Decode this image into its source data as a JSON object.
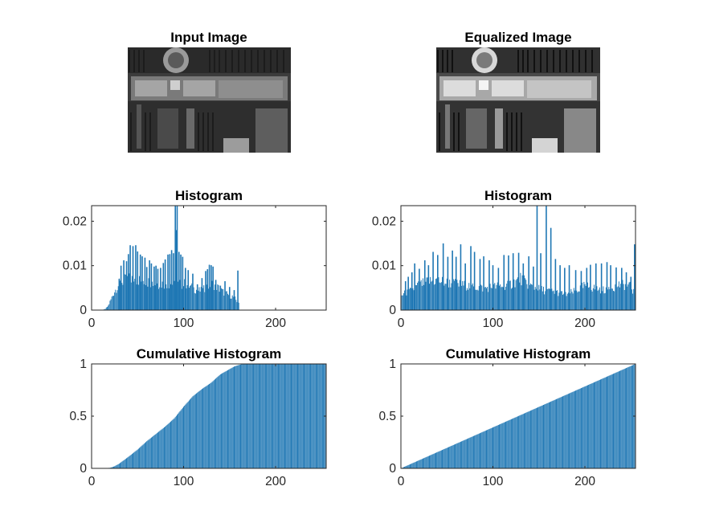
{
  "figure": {
    "image_titles": [
      "Input Image",
      "Equalized Image"
    ]
  },
  "chart_data": [
    {
      "type": "bar",
      "title": "Histogram",
      "xlim": [
        0,
        255
      ],
      "ylim": [
        0,
        0.0235
      ],
      "xticks": [
        0,
        100,
        200
      ],
      "yticks": [
        0,
        0.01,
        0.02
      ],
      "ytick_labels": [
        "0",
        "0.01",
        "0.02"
      ],
      "bar_color": "#1f77b4",
      "envelope": [
        [
          12,
          0
        ],
        [
          15,
          0.0003
        ],
        [
          18,
          0.001
        ],
        [
          20,
          0.002
        ],
        [
          22,
          0.003
        ],
        [
          25,
          0.0045
        ],
        [
          28,
          0.0055
        ],
        [
          30,
          0.0062
        ],
        [
          35,
          0.007
        ],
        [
          40,
          0.0073
        ],
        [
          45,
          0.0075
        ],
        [
          50,
          0.0072
        ],
        [
          55,
          0.007
        ],
        [
          60,
          0.0068
        ],
        [
          65,
          0.0065
        ],
        [
          70,
          0.0063
        ],
        [
          75,
          0.0062
        ],
        [
          80,
          0.0063
        ],
        [
          85,
          0.0062
        ],
        [
          90,
          0.0061
        ],
        [
          95,
          0.006
        ],
        [
          100,
          0.0063
        ],
        [
          105,
          0.0058
        ],
        [
          110,
          0.0052
        ],
        [
          115,
          0.0047
        ],
        [
          120,
          0.0045
        ],
        [
          125,
          0.0055
        ],
        [
          130,
          0.0062
        ],
        [
          135,
          0.0058
        ],
        [
          140,
          0.0048
        ],
        [
          145,
          0.004
        ],
        [
          150,
          0.0035
        ],
        [
          155,
          0.003
        ],
        [
          160,
          0.0015
        ],
        [
          161,
          0
        ]
      ],
      "spikes": [
        [
          30,
          0.007
        ],
        [
          32,
          0.01
        ],
        [
          35,
          0.0112
        ],
        [
          38,
          0.011
        ],
        [
          40,
          0.0126
        ],
        [
          42,
          0.0146
        ],
        [
          45,
          0.0144
        ],
        [
          48,
          0.0146
        ],
        [
          50,
          0.0132
        ],
        [
          53,
          0.0125
        ],
        [
          55,
          0.0121
        ],
        [
          58,
          0.0118
        ],
        [
          60,
          0.0097
        ],
        [
          63,
          0.0112
        ],
        [
          65,
          0.0105
        ],
        [
          68,
          0.0098
        ],
        [
          70,
          0.01
        ],
        [
          72,
          0.0093
        ],
        [
          75,
          0.0095
        ],
        [
          78,
          0.0106
        ],
        [
          80,
          0.0114
        ],
        [
          83,
          0.0125
        ],
        [
          85,
          0.0126
        ],
        [
          87,
          0.0135
        ],
        [
          89,
          0.0128
        ],
        [
          91,
          0.0234
        ],
        [
          92,
          0.018
        ],
        [
          93,
          0.0234
        ],
        [
          95,
          0.0131
        ],
        [
          97,
          0.0125
        ],
        [
          99,
          0.012
        ],
        [
          102,
          0.0095
        ],
        [
          105,
          0.009
        ],
        [
          110,
          0.0082
        ],
        [
          115,
          0.0058
        ],
        [
          120,
          0.0072
        ],
        [
          124,
          0.0088
        ],
        [
          126,
          0.0092
        ],
        [
          128,
          0.0102
        ],
        [
          130,
          0.0101
        ],
        [
          132,
          0.0098
        ],
        [
          135,
          0.0068
        ],
        [
          140,
          0.0055
        ],
        [
          145,
          0.0065
        ],
        [
          150,
          0.0052
        ],
        [
          155,
          0.0045
        ],
        [
          159,
          0.0089
        ]
      ]
    },
    {
      "type": "bar",
      "title": "Histogram",
      "xlim": [
        0,
        255
      ],
      "ylim": [
        0,
        0.0235
      ],
      "xticks": [
        0,
        100,
        200
      ],
      "yticks": [
        0,
        0.01,
        0.02
      ],
      "ytick_labels": [
        "0",
        "0.01",
        "0.02"
      ],
      "bar_color": "#1f77b4",
      "envelope": [
        [
          0,
          0.0035
        ],
        [
          10,
          0.0045
        ],
        [
          20,
          0.006
        ],
        [
          30,
          0.0068
        ],
        [
          40,
          0.007
        ],
        [
          50,
          0.0065
        ],
        [
          60,
          0.0062
        ],
        [
          70,
          0.0058
        ],
        [
          80,
          0.0055
        ],
        [
          90,
          0.0052
        ],
        [
          100,
          0.0055
        ],
        [
          110,
          0.0058
        ],
        [
          120,
          0.0062
        ],
        [
          130,
          0.0075
        ],
        [
          140,
          0.0058
        ],
        [
          150,
          0.005
        ],
        [
          160,
          0.0045
        ],
        [
          170,
          0.0042
        ],
        [
          180,
          0.0038
        ],
        [
          190,
          0.0045
        ],
        [
          200,
          0.0058
        ],
        [
          210,
          0.0052
        ],
        [
          220,
          0.0048
        ],
        [
          230,
          0.0055
        ],
        [
          240,
          0.0062
        ],
        [
          250,
          0.0055
        ],
        [
          255,
          0.0035
        ]
      ],
      "spikes": [
        [
          5,
          0.0065
        ],
        [
          8,
          0.0075
        ],
        [
          12,
          0.0085
        ],
        [
          15,
          0.0105
        ],
        [
          20,
          0.0093
        ],
        [
          26,
          0.0112
        ],
        [
          30,
          0.0101
        ],
        [
          35,
          0.0131
        ],
        [
          40,
          0.0124
        ],
        [
          46,
          0.015
        ],
        [
          51,
          0.012
        ],
        [
          56,
          0.0134
        ],
        [
          60,
          0.012
        ],
        [
          65,
          0.0148
        ],
        [
          70,
          0.0105
        ],
        [
          76,
          0.0144
        ],
        [
          80,
          0.0131
        ],
        [
          86,
          0.0115
        ],
        [
          90,
          0.0121
        ],
        [
          96,
          0.0112
        ],
        [
          100,
          0.0101
        ],
        [
          106,
          0.0095
        ],
        [
          112,
          0.0124
        ],
        [
          117,
          0.0123
        ],
        [
          122,
          0.0128
        ],
        [
          128,
          0.0129
        ],
        [
          133,
          0.0105
        ],
        [
          139,
          0.0121
        ],
        [
          144,
          0.0098
        ],
        [
          148,
          0.0234
        ],
        [
          152,
          0.0128
        ],
        [
          158,
          0.0234
        ],
        [
          163,
          0.0185
        ],
        [
          168,
          0.0115
        ],
        [
          173,
          0.0101
        ],
        [
          178,
          0.0095
        ],
        [
          183,
          0.0101
        ],
        [
          190,
          0.009
        ],
        [
          196,
          0.0088
        ],
        [
          202,
          0.0095
        ],
        [
          206,
          0.0102
        ],
        [
          212,
          0.0105
        ],
        [
          218,
          0.0105
        ],
        [
          224,
          0.0108
        ],
        [
          228,
          0.0101
        ],
        [
          234,
          0.0096
        ],
        [
          240,
          0.0095
        ],
        [
          245,
          0.0085
        ],
        [
          250,
          0.0075
        ],
        [
          254,
          0.0148
        ]
      ]
    },
    {
      "type": "bar",
      "title": "Cumulative Histogram",
      "xlim": [
        0,
        255
      ],
      "ylim": [
        0,
        1
      ],
      "xticks": [
        0,
        100,
        200
      ],
      "yticks": [
        0,
        0.5,
        1
      ],
      "ytick_labels": [
        "0",
        "0.5",
        "1"
      ],
      "bar_color": "#1f77b4",
      "curve": [
        [
          0,
          0
        ],
        [
          10,
          0
        ],
        [
          20,
          0.005
        ],
        [
          25,
          0.02
        ],
        [
          30,
          0.045
        ],
        [
          40,
          0.11
        ],
        [
          50,
          0.18
        ],
        [
          60,
          0.26
        ],
        [
          70,
          0.33
        ],
        [
          80,
          0.4
        ],
        [
          90,
          0.48
        ],
        [
          100,
          0.59
        ],
        [
          110,
          0.69
        ],
        [
          120,
          0.76
        ],
        [
          130,
          0.82
        ],
        [
          140,
          0.9
        ],
        [
          150,
          0.95
        ],
        [
          155,
          0.975
        ],
        [
          160,
          0.99
        ],
        [
          165,
          1.0
        ],
        [
          255,
          1.0
        ]
      ]
    },
    {
      "type": "bar",
      "title": "Cumulative Histogram",
      "xlim": [
        0,
        255
      ],
      "ylim": [
        0,
        1
      ],
      "xticks": [
        0,
        100,
        200
      ],
      "yticks": [
        0,
        0.5,
        1
      ],
      "ytick_labels": [
        "0",
        "0.5",
        "1"
      ],
      "bar_color": "#1f77b4",
      "curve": [
        [
          0,
          0
        ],
        [
          255,
          1
        ]
      ]
    }
  ]
}
